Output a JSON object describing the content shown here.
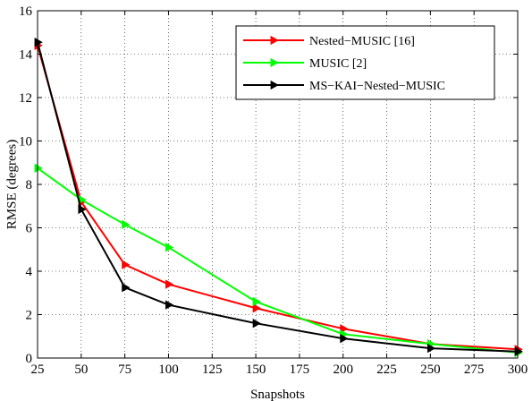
{
  "chart_data": {
    "type": "line",
    "xlabel": "Snapshots",
    "ylabel": "RMSE (degrees)",
    "xlim": [
      25,
      300
    ],
    "ylim": [
      0,
      16
    ],
    "xticks": [
      25,
      50,
      75,
      100,
      125,
      150,
      175,
      200,
      225,
      250,
      275,
      300
    ],
    "yticks": [
      0,
      2,
      4,
      6,
      8,
      10,
      12,
      14,
      16
    ],
    "grid": true,
    "legend_position": "top-right",
    "x": [
      25,
      50,
      75,
      100,
      150,
      200,
      250,
      300
    ],
    "series": [
      {
        "name": "Nested−MUSIC [16]",
        "color": "#ff0000",
        "marker": "right-triangle",
        "values": [
          14.4,
          7.2,
          4.3,
          3.4,
          2.3,
          1.35,
          0.65,
          0.4
        ]
      },
      {
        "name": " MUSIC [2]",
        "color": "#00ff00",
        "marker": "right-triangle",
        "values": [
          8.75,
          7.3,
          6.15,
          5.1,
          2.6,
          1.1,
          0.65,
          0.25
        ]
      },
      {
        "name": "MS−KAI−Nested−MUSIC",
        "color": "#000000",
        "marker": "right-triangle",
        "values": [
          14.55,
          6.85,
          3.25,
          2.45,
          1.6,
          0.9,
          0.45,
          0.3
        ]
      }
    ]
  }
}
